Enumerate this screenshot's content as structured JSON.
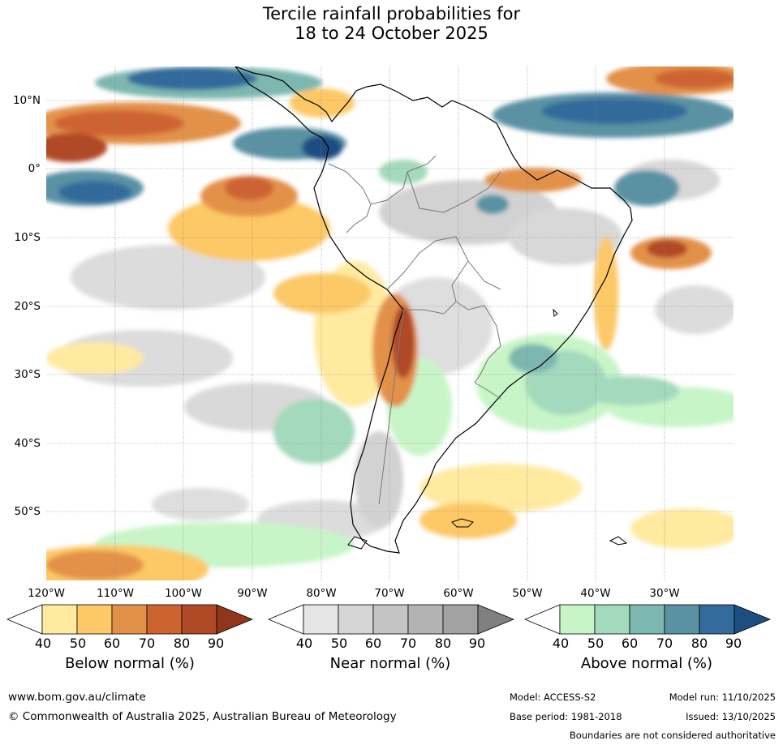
{
  "title": {
    "line1": "Tercile rainfall probabilities for",
    "line2": "18 to 24 October 2025"
  },
  "map": {
    "region": "South America",
    "lat_labels": [
      "10°N",
      "0°",
      "10°S",
      "20°S",
      "30°S",
      "40°S",
      "50°S"
    ],
    "lon_labels": [
      "120°W",
      "110°W",
      "100°W",
      "90°W",
      "80°W",
      "70°W",
      "60°W",
      "50°W",
      "40°W",
      "30°W"
    ]
  },
  "legends": [
    {
      "title": "Below normal (%)",
      "ticks": [
        "40",
        "50",
        "60",
        "70",
        "80",
        "90"
      ],
      "colors": [
        "#ffffff",
        "#ffeaa0",
        "#fdc866",
        "#e39148",
        "#cd6430",
        "#b04a26",
        "#92351d"
      ]
    },
    {
      "title": "Near normal (%)",
      "ticks": [
        "40",
        "50",
        "60",
        "70",
        "80",
        "90"
      ],
      "colors": [
        "#ffffff",
        "#e6e6e6",
        "#d5d5d5",
        "#c4c4c4",
        "#b3b3b3",
        "#a2a2a2",
        "#808080"
      ]
    },
    {
      "title": "Above normal (%)",
      "ticks": [
        "40",
        "50",
        "60",
        "70",
        "80",
        "90"
      ],
      "colors": [
        "#ffffff",
        "#c8f5c8",
        "#a3d9bc",
        "#7cb7b0",
        "#5a92a4",
        "#336b9c",
        "#1c4e82"
      ]
    }
  ],
  "footer": {
    "url": "www.bom.gov.au/climate",
    "copyright": "© Commonwealth of Australia 2025, Australian Bureau of Meteorology",
    "model": "Model: ACCESS-S2",
    "model_run": "Model run: 11/10/2025",
    "base_period": "Base period: 1981-2018",
    "issued": "Issued: 13/10/2025",
    "disclaimer": "Boundaries are not considered authoritative"
  }
}
